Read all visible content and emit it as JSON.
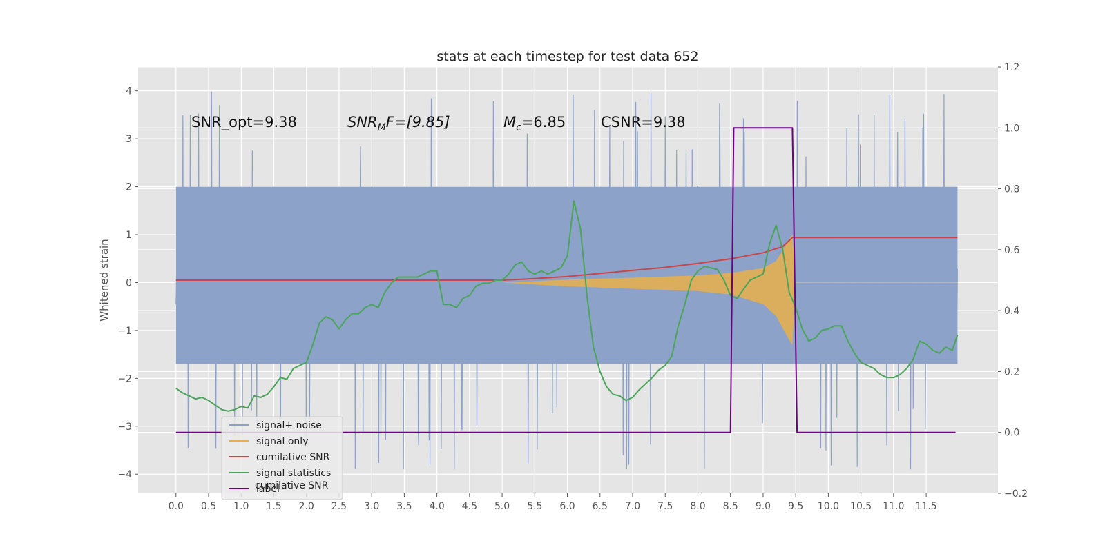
{
  "chart_data": {
    "type": "line",
    "title": "stats at each timestep for test data 652",
    "ylabel": "Whitened strain",
    "xlabel": "",
    "xlim": [
      -0.58,
      12.6
    ],
    "ylim": [
      -4.4,
      4.5
    ],
    "y2lim": [
      -0.2,
      1.2
    ],
    "grid": true,
    "xticks": [
      "0.0",
      "0.5",
      "1.0",
      "1.5",
      "2.0",
      "2.5",
      "3.0",
      "3.5",
      "4.0",
      "4.5",
      "5.0",
      "5.5",
      "6.0",
      "6.5",
      "7.0",
      "7.5",
      "8.0",
      "8.5",
      "9.0",
      "9.5",
      "10.0",
      "10.5",
      "11.0",
      "11.5"
    ],
    "yticks": [
      "4",
      "3",
      "2",
      "1",
      "0",
      "−1",
      "−2",
      "−3",
      "−4"
    ],
    "y2ticks": [
      "1.2",
      "1.0",
      "0.8",
      "0.6",
      "0.4",
      "0.2",
      "0.0",
      "−0.2"
    ],
    "annotations": [
      {
        "plain": "SNR_opt=9.38"
      },
      {
        "snr": "SNR",
        "sub": "M",
        "rest": "F=[9.85]"
      },
      {
        "m": "M",
        "sub": "c",
        "rest": "=6.85"
      },
      {
        "plain": "CSNR=9.38"
      }
    ],
    "legend": {
      "placement": "lower-left",
      "entries": [
        "signal+ noise",
        "signal only",
        "cumilative SNR",
        "signal statistics",
        "label"
      ],
      "ghost_text": "cumilative SNR"
    },
    "colors": {
      "noise": "#8da2c8",
      "signal": "#e8b04a",
      "cumulative": "#c8464b",
      "statistics": "#4aa55a",
      "label": "#6b0080",
      "plot_bg": "#e5e5e5",
      "grid": "#ffffff"
    },
    "series": [
      {
        "name": "signal+ noise",
        "axis": "left",
        "t_range": [
          0.0,
          11.98
        ],
        "envelope_core": [
          -1.7,
          2.0
        ],
        "peak_range": [
          -3.9,
          4.1
        ]
      },
      {
        "name": "signal only",
        "axis": "left",
        "x": [
          5.0,
          6.0,
          7.0,
          8.0,
          8.5,
          9.0,
          9.2,
          9.4,
          9.45,
          9.5,
          12.0
        ],
        "upper": [
          0.0,
          0.06,
          0.1,
          0.15,
          0.2,
          0.3,
          0.45,
          0.9,
          1.0,
          0.0,
          0.0
        ],
        "lower": [
          0.0,
          -0.08,
          -0.13,
          -0.18,
          -0.25,
          -0.45,
          -0.7,
          -1.2,
          -1.3,
          0.0,
          0.0
        ]
      },
      {
        "name": "cumilative SNR",
        "axis": "right",
        "x": [
          0.0,
          5.0,
          5.5,
          6.0,
          6.5,
          7.0,
          7.5,
          8.0,
          8.5,
          9.0,
          9.3,
          9.45,
          11.98
        ],
        "y": [
          0.5,
          0.5,
          0.505,
          0.512,
          0.522,
          0.532,
          0.542,
          0.555,
          0.57,
          0.59,
          0.61,
          0.64,
          0.64
        ]
      },
      {
        "name": "signal statistics",
        "axis": "right",
        "x": [
          0.0,
          0.1,
          0.2,
          0.3,
          0.4,
          0.5,
          0.6,
          0.7,
          0.8,
          0.9,
          1.0,
          1.1,
          1.2,
          1.3,
          1.4,
          1.5,
          1.6,
          1.7,
          1.8,
          1.9,
          2.0,
          2.1,
          2.2,
          2.3,
          2.4,
          2.5,
          2.6,
          2.7,
          2.8,
          2.9,
          3.0,
          3.1,
          3.2,
          3.3,
          3.4,
          3.5,
          3.6,
          3.7,
          3.8,
          3.9,
          4.0,
          4.1,
          4.2,
          4.3,
          4.4,
          4.5,
          4.6,
          4.7,
          4.8,
          4.9,
          5.0,
          5.1,
          5.2,
          5.3,
          5.4,
          5.5,
          5.6,
          5.7,
          5.8,
          5.9,
          6.0,
          6.1,
          6.2,
          6.3,
          6.4,
          6.5,
          6.6,
          6.7,
          6.8,
          6.9,
          7.0,
          7.1,
          7.2,
          7.3,
          7.4,
          7.5,
          7.6,
          7.7,
          7.8,
          7.9,
          8.0,
          8.1,
          8.2,
          8.3,
          8.4,
          8.5,
          8.6,
          8.7,
          8.8,
          8.9,
          9.0,
          9.1,
          9.2,
          9.3,
          9.4,
          9.5,
          9.6,
          9.7,
          9.8,
          9.9,
          10.0,
          10.1,
          10.2,
          10.3,
          10.4,
          10.5,
          10.6,
          10.7,
          10.8,
          10.9,
          11.0,
          11.1,
          11.2,
          11.3,
          11.4,
          11.5,
          11.6,
          11.7,
          11.8,
          11.9,
          11.98
        ],
        "y": [
          0.145,
          0.13,
          0.12,
          0.11,
          0.115,
          0.105,
          0.09,
          0.075,
          0.07,
          0.075,
          0.085,
          0.08,
          0.12,
          0.115,
          0.125,
          0.15,
          0.18,
          0.175,
          0.21,
          0.22,
          0.23,
          0.29,
          0.36,
          0.38,
          0.37,
          0.34,
          0.37,
          0.39,
          0.39,
          0.41,
          0.42,
          0.41,
          0.46,
          0.49,
          0.51,
          0.51,
          0.51,
          0.51,
          0.52,
          0.53,
          0.53,
          0.42,
          0.42,
          0.41,
          0.44,
          0.45,
          0.48,
          0.49,
          0.49,
          0.5,
          0.5,
          0.52,
          0.55,
          0.56,
          0.53,
          0.52,
          0.53,
          0.52,
          0.53,
          0.54,
          0.58,
          0.76,
          0.67,
          0.45,
          0.28,
          0.2,
          0.15,
          0.125,
          0.12,
          0.105,
          0.115,
          0.14,
          0.16,
          0.18,
          0.205,
          0.22,
          0.25,
          0.35,
          0.42,
          0.5,
          0.53,
          0.545,
          0.54,
          0.535,
          0.5,
          0.45,
          0.44,
          0.47,
          0.5,
          0.51,
          0.52,
          0.62,
          0.68,
          0.6,
          0.46,
          0.41,
          0.34,
          0.3,
          0.31,
          0.335,
          0.34,
          0.35,
          0.35,
          0.3,
          0.26,
          0.23,
          0.22,
          0.21,
          0.19,
          0.18,
          0.18,
          0.19,
          0.21,
          0.24,
          0.3,
          0.29,
          0.27,
          0.26,
          0.28,
          0.27,
          0.32
        ]
      },
      {
        "name": "label",
        "axis": "right",
        "x": [
          0.0,
          8.5,
          8.55,
          9.45,
          9.52,
          11.95
        ],
        "y": [
          0.0,
          0.0,
          1.0,
          1.0,
          0.0,
          0.0
        ]
      }
    ]
  }
}
